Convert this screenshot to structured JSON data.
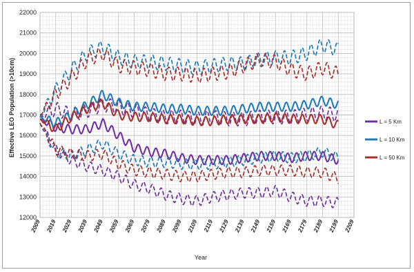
{
  "chart_data": {
    "type": "line",
    "title": "",
    "xlabel": "Year",
    "ylabel": "Effective LEO Population (>10cm)",
    "xlim": [
      2009,
      2209
    ],
    "ylim": [
      12000,
      22000
    ],
    "x_ticks": [
      2009,
      2019,
      2029,
      2039,
      2049,
      2059,
      2069,
      2079,
      2089,
      2099,
      2109,
      2119,
      2129,
      2139,
      2149,
      2159,
      2169,
      2179,
      2189,
      2199,
      2209
    ],
    "x_tick_labels": [
      "2009",
      "2019",
      "2029",
      "2039",
      "2049",
      "2059",
      "2069",
      "2079",
      "2089",
      "2099",
      "2109",
      "2119",
      "2129",
      "2139",
      "2149",
      "2159",
      "2169",
      "2179",
      "2189",
      "2199",
      "2209"
    ],
    "y_ticks": [
      12000,
      13000,
      14000,
      15000,
      16000,
      17000,
      18000,
      19000,
      20000,
      21000,
      22000
    ],
    "y_tick_labels": [
      "12000",
      "13000",
      "14000",
      "15000",
      "16000",
      "17000",
      "18000",
      "19000",
      "20000",
      "21000",
      "22000"
    ],
    "grid": true,
    "legend_position": "right",
    "legend": [
      {
        "label": "L = 5 Km",
        "color": "#7030a0"
      },
      {
        "label": "L = 10 Km",
        "color": "#1f7ab8"
      },
      {
        "label": "L = 50 Km",
        "color": "#a5312d"
      }
    ],
    "x": [
      2009,
      2019,
      2029,
      2039,
      2049,
      2059,
      2069,
      2079,
      2089,
      2099,
      2109,
      2119,
      2129,
      2139,
      2149,
      2159,
      2169,
      2179,
      2189,
      2199
    ],
    "series": [
      {
        "name": "L = 5 Km",
        "style": "solid",
        "color": "#7030a0",
        "values": [
          16800,
          16400,
          16300,
          16300,
          16600,
          16000,
          15400,
          15200,
          15100,
          14900,
          14800,
          14800,
          14800,
          14900,
          15000,
          15000,
          14900,
          15000,
          15000,
          14800
        ]
      },
      {
        "name": "L = 5 Km",
        "style": "dashed-high",
        "color": "#7030a0",
        "values": [
          16900,
          17300,
          17000,
          17200,
          17500,
          17400,
          17200,
          17000,
          16900,
          16900,
          16800,
          16900,
          16800,
          16800,
          16900,
          16900,
          16900,
          17000,
          17100,
          17000
        ]
      },
      {
        "name": "L = 5 Km",
        "style": "dashed-low",
        "color": "#7030a0",
        "values": [
          16600,
          15300,
          14800,
          14500,
          14300,
          14000,
          13600,
          13400,
          13100,
          12900,
          12800,
          13000,
          13100,
          13200,
          13200,
          13300,
          13000,
          12800,
          12800,
          12700
        ]
      },
      {
        "name": "L = 10 Km",
        "style": "solid",
        "color": "#1f7ab8",
        "values": [
          16900,
          16600,
          17000,
          17500,
          18000,
          17600,
          17400,
          17400,
          17300,
          17300,
          17200,
          17200,
          17200,
          17300,
          17400,
          17400,
          17400,
          17500,
          17700,
          17500
        ]
      },
      {
        "name": "L = 10 Km",
        "style": "dashed-high",
        "color": "#1f7ab8",
        "values": [
          16900,
          18200,
          19200,
          20000,
          20300,
          19800,
          19600,
          19600,
          19500,
          19400,
          19300,
          19400,
          19500,
          19500,
          19700,
          19800,
          19800,
          20000,
          20400,
          20200
        ]
      },
      {
        "name": "L = 10 Km",
        "style": "dashed-low",
        "color": "#1f7ab8",
        "values": [
          16600,
          15200,
          15000,
          15300,
          15600,
          15100,
          14800,
          14700,
          14700,
          14600,
          14600,
          14600,
          14700,
          14800,
          14900,
          15000,
          14900,
          15000,
          15200,
          14900
        ]
      },
      {
        "name": "L = 50 Km",
        "style": "solid",
        "color": "#a5312d",
        "values": [
          16800,
          16300,
          16900,
          17300,
          17600,
          17000,
          16900,
          16900,
          16800,
          16800,
          16700,
          16700,
          16800,
          16800,
          16800,
          16900,
          16800,
          16800,
          16800,
          16500
        ]
      },
      {
        "name": "L = 50 Km",
        "style": "dashed-high",
        "color": "#a5312d",
        "values": [
          17000,
          18000,
          18800,
          19700,
          20000,
          19400,
          19300,
          19200,
          19000,
          19000,
          18900,
          19000,
          19100,
          19400,
          19700,
          19600,
          19200,
          19000,
          19300,
          19000
        ]
      },
      {
        "name": "L = 50 Km",
        "style": "dashed-low",
        "color": "#a5312d",
        "values": [
          16600,
          15300,
          15100,
          15000,
          15100,
          14600,
          14300,
          14200,
          14100,
          14000,
          14000,
          14100,
          14200,
          14200,
          14300,
          14300,
          14300,
          14200,
          14200,
          13900
        ]
      }
    ]
  }
}
